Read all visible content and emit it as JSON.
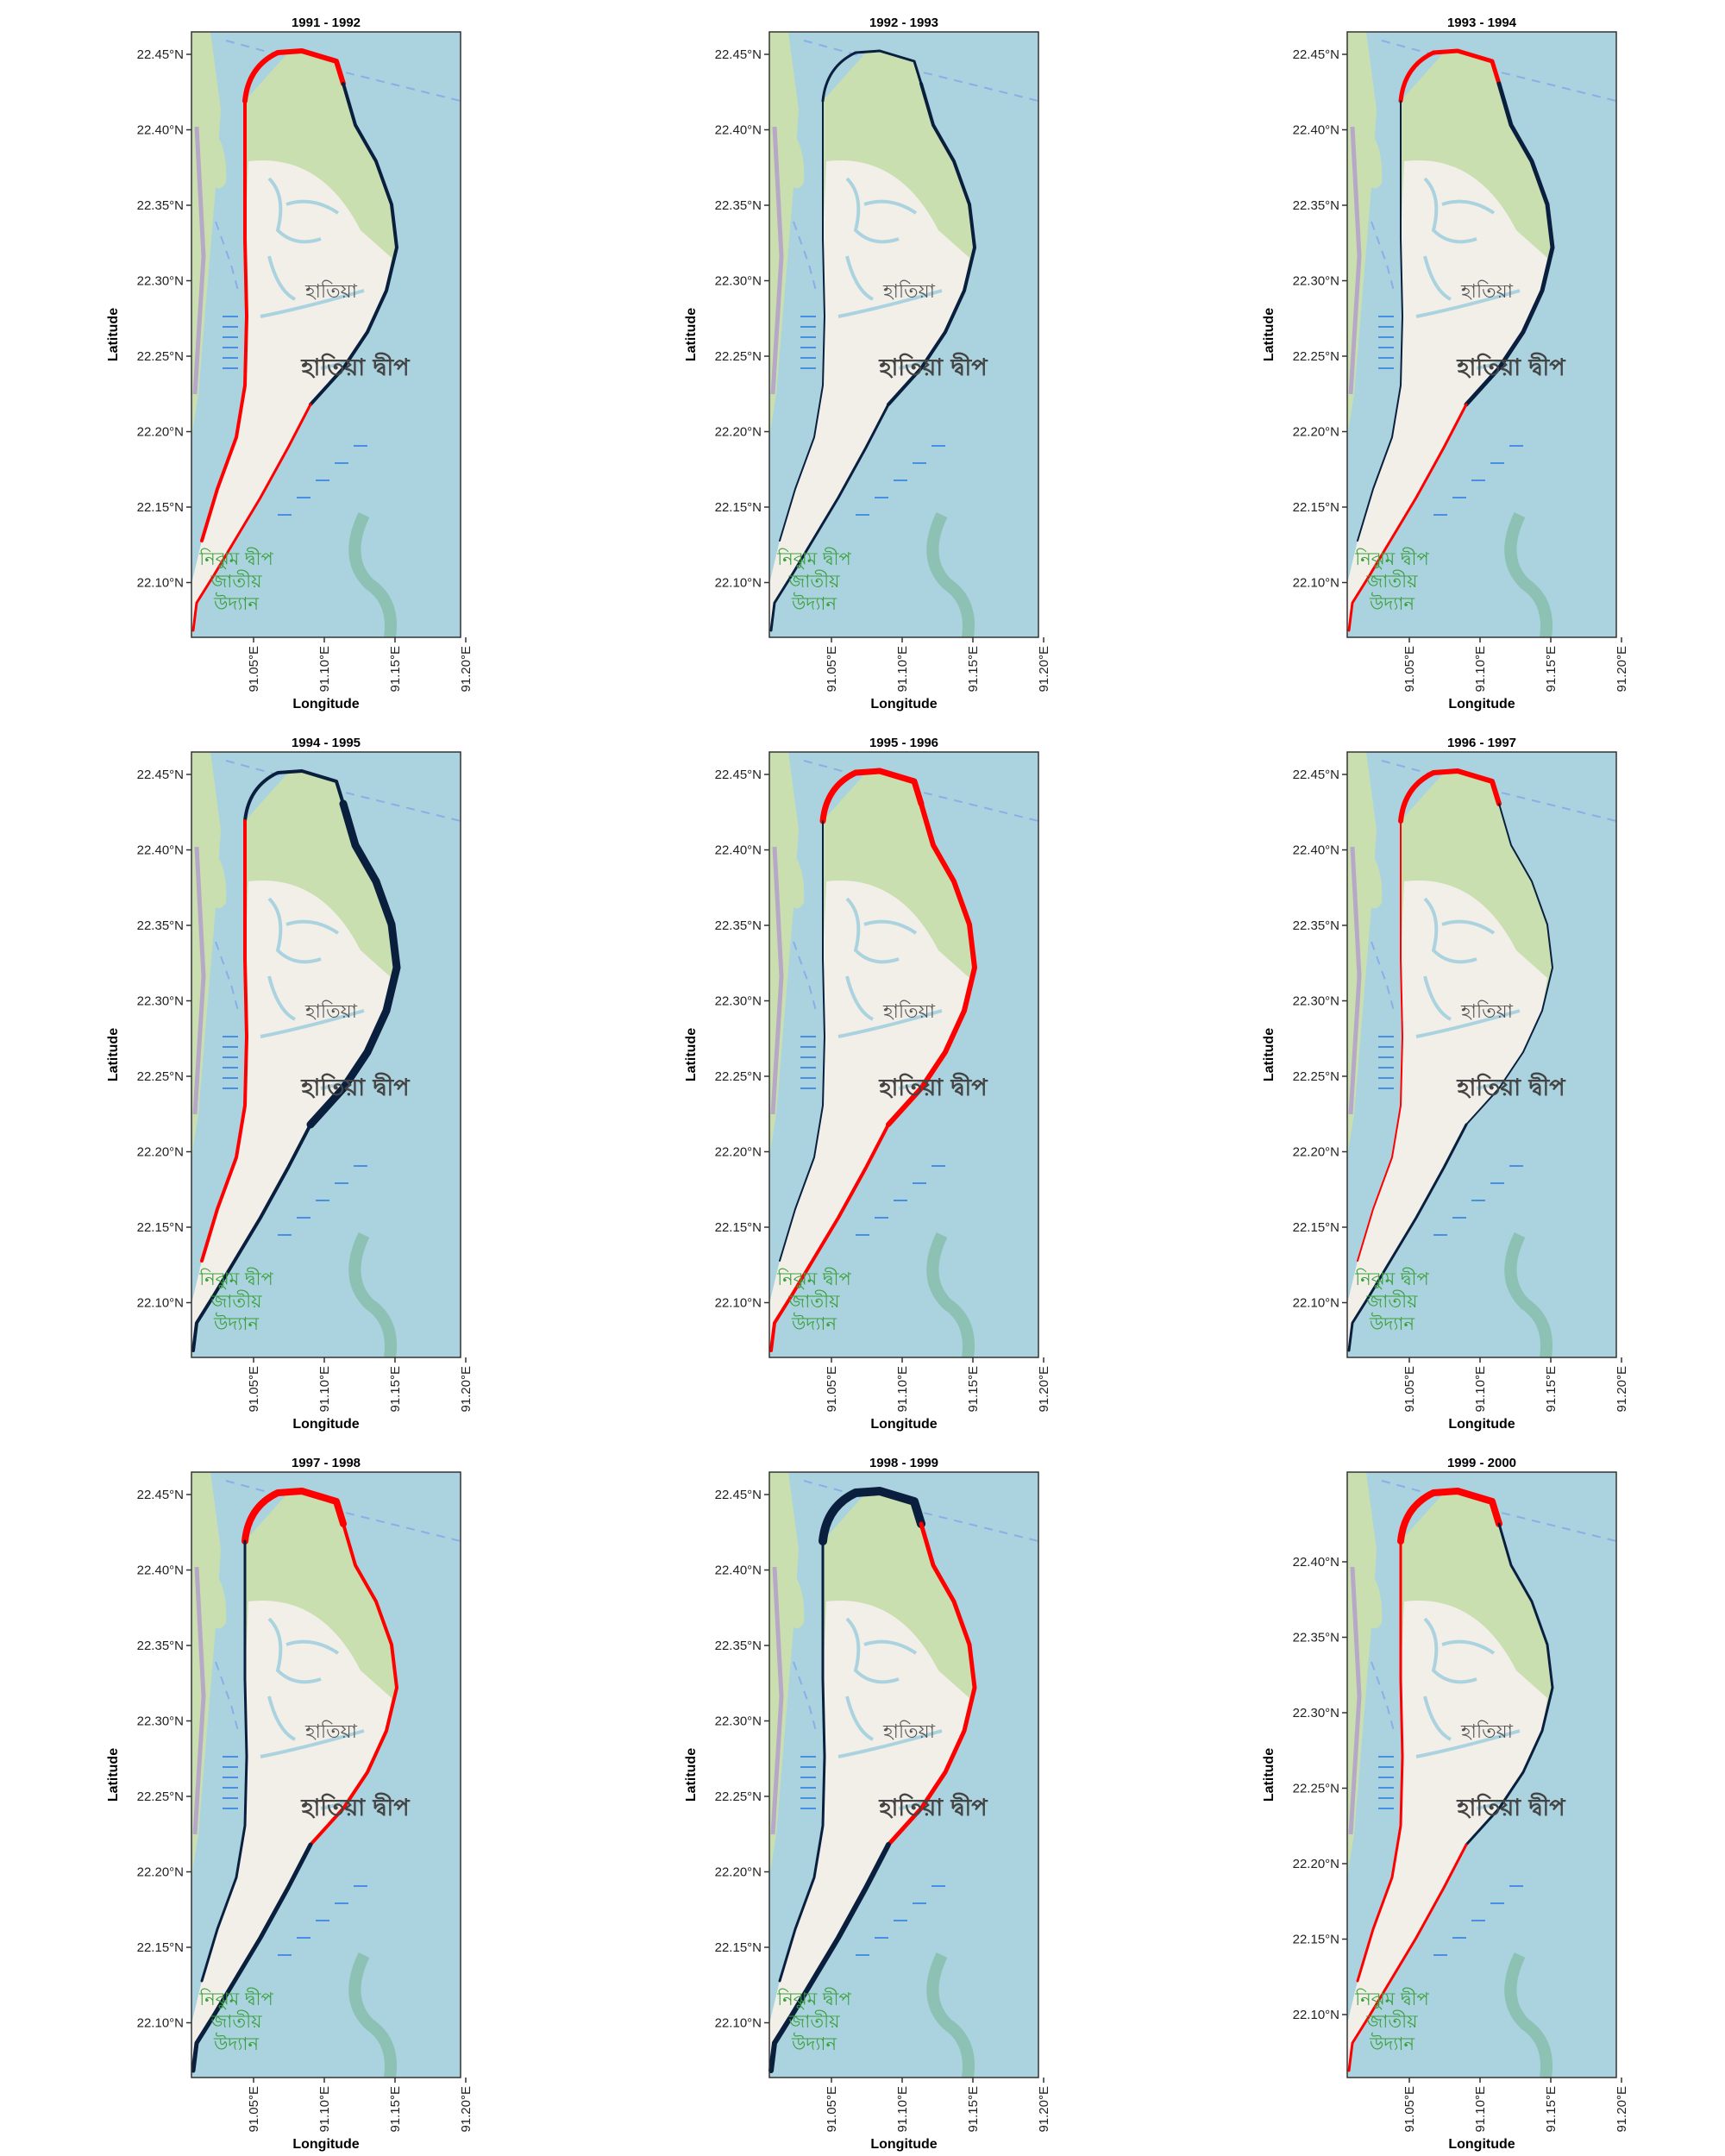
{
  "colors": {
    "sea": "#aad3df",
    "land": "#f2efe9",
    "mangrove": "#c9dfb0",
    "river": "#aad3df",
    "accretion": "#ff0000",
    "erosion": "#0a1f3d",
    "park_label": "#3aa03a"
  },
  "axes": {
    "xlabel": "Longitude",
    "ylabel": "Latitude",
    "x_ticks": [
      "91.05°E",
      "91.10°E",
      "91.15°E",
      "91.20°E"
    ],
    "y_ticks": [
      "22.45°N",
      "22.40°N",
      "22.35°N",
      "22.30°N",
      "22.25°N",
      "22.20°N",
      "22.15°N",
      "22.10°N"
    ],
    "y_ticks_last": [
      "22.40°N",
      "22.35°N",
      "22.30°N",
      "22.25°N",
      "22.20°N",
      "22.15°N",
      "22.10°N"
    ]
  },
  "map_labels": {
    "town": "হাতিয়া",
    "island": "হাতিয়া দ্বীপ",
    "park_line1": "নিঝুম দ্বীপ",
    "park_line2": "জাতীয়",
    "park_line3": "উদ্যান"
  },
  "panels": [
    {
      "title": "1991 - 1992",
      "pattern": "a"
    },
    {
      "title": "1992 - 1993",
      "pattern": "b"
    },
    {
      "title": "1993 - 1994",
      "pattern": "c"
    },
    {
      "title": "1994 - 1995",
      "pattern": "d"
    },
    {
      "title": "1995 - 1996",
      "pattern": "e"
    },
    {
      "title": "1996 - 1997",
      "pattern": "f"
    },
    {
      "title": "1997 - 1998",
      "pattern": "g"
    },
    {
      "title": "1998 - 1999",
      "pattern": "h"
    },
    {
      "title": "1999 - 2000",
      "pattern": "i"
    }
  ]
}
